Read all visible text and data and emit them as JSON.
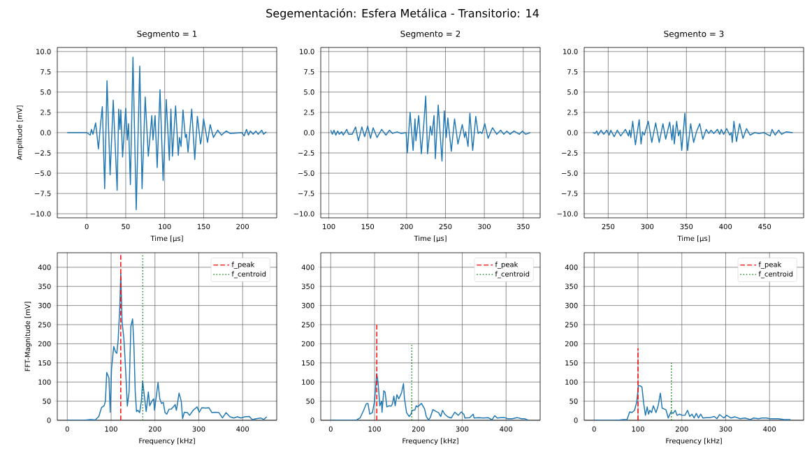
{
  "chart_data": [
    {
      "type": "line",
      "title": "Segmento = 1",
      "xlabel": "Time [µs]",
      "ylabel": "Amplitude [mV]",
      "annotations": [
        "Segementación: Esfera Metálica - Transitorio: 14"
      ],
      "xlim": [
        -37.8,
        243.8
      ],
      "xticks": [
        0,
        50,
        100,
        150,
        200
      ],
      "ylim": [
        -10.5,
        10.5
      ],
      "yticks": [
        {
          "value": -10,
          "label": "−10.0"
        },
        {
          "value": -7.5,
          "label": "−7.5"
        },
        {
          "value": -5,
          "label": "−5.0"
        },
        {
          "value": -2.5,
          "label": "−2.5"
        },
        {
          "value": 0,
          "label": "0.0"
        },
        {
          "value": 2.5,
          "label": "2.5"
        },
        {
          "value": 5,
          "label": "5.0"
        },
        {
          "value": 7.5,
          "label": "7.5"
        },
        {
          "value": 10,
          "label": "10.0"
        }
      ],
      "grid": true,
      "series": [
        {
          "color": "#1f77b4",
          "x": [
            -25,
            0,
            4.5,
            6,
            8,
            11.4,
            15,
            17.7,
            20,
            23,
            26,
            30,
            34,
            39,
            41,
            42.5,
            43.7,
            46,
            50,
            52,
            53.6,
            56,
            59.3,
            63.5,
            68,
            71,
            75,
            79,
            83.5,
            85,
            87.7,
            90.4,
            94,
            98,
            102,
            106,
            108,
            110,
            114,
            117.5,
            119,
            121,
            123.5,
            126.6,
            128,
            130,
            134.7,
            138.6,
            142,
            146,
            147,
            150,
            155,
            158.4,
            162.6,
            168,
            173,
            179,
            184,
            199,
            202,
            205,
            207.5,
            210,
            213.5,
            217,
            220,
            224.6,
            227,
            230.5
          ],
          "values": [
            0,
            0,
            -0.3,
            0.4,
            -0.2,
            1.2,
            -2.0,
            1.1,
            3.2,
            -6.9,
            6.4,
            -5.2,
            4.0,
            -7.1,
            2.9,
            0.4,
            2.8,
            -3.0,
            3.0,
            -0.9,
            1.1,
            -6.4,
            9.3,
            -9.5,
            8.2,
            -6.9,
            4.4,
            -2.9,
            2.1,
            -0.9,
            2.1,
            -4.3,
            5.3,
            -5.9,
            4.1,
            -3.4,
            2.9,
            -2.9,
            3.3,
            -2.8,
            -0.6,
            -1.7,
            2.8,
            -0.6,
            -0.2,
            -2.4,
            2.9,
            -3.3,
            2.0,
            -1.4,
            -0.9,
            1.7,
            -1.2,
            1.0,
            -0.6,
            0.3,
            -0.3,
            0.2,
            -0.1,
            0,
            -0.4,
            0.4,
            -0.3,
            0.2,
            -0.2,
            0.2,
            -0.2,
            0.3,
            -0.2,
            0.1
          ]
        }
      ]
    },
    {
      "type": "line",
      "title": "Segmento = 2",
      "xlabel": "Time [µs]",
      "xlim": [
        89.6,
        371.8
      ],
      "xticks": [
        100,
        150,
        200,
        250,
        300,
        350
      ],
      "ylim": [
        -10.5,
        10.5
      ],
      "yticks": [
        {
          "value": -10,
          "label": "−10.0"
        },
        {
          "value": -7.5,
          "label": "−7.5"
        },
        {
          "value": -5,
          "label": "−5.0"
        },
        {
          "value": -2.5,
          "label": "−2.5"
        },
        {
          "value": 0,
          "label": "0.0"
        },
        {
          "value": 2.5,
          "label": "2.5"
        },
        {
          "value": 5,
          "label": "5.0"
        },
        {
          "value": 7.5,
          "label": "7.5"
        },
        {
          "value": 10,
          "label": "10.0"
        }
      ],
      "grid": true,
      "series": [
        {
          "color": "#1f77b4",
          "x": [
            102.4,
            104.5,
            106.6,
            109,
            111.4,
            113.5,
            116.5,
            118.6,
            123,
            125.4,
            130,
            134.4,
            138,
            142.5,
            146,
            150,
            153.6,
            157,
            162,
            168,
            173.4,
            178,
            182,
            187.7,
            192.8,
            199.4,
            201,
            204.5,
            208.4,
            210.8,
            212,
            215.6,
            219,
            222,
            224.6,
            227,
            230.5,
            232.6,
            235.3,
            237,
            240.7,
            245.5,
            248.5,
            251,
            253,
            257.5,
            261.7,
            266,
            271.6,
            274.6,
            276,
            279,
            281.4,
            285,
            289,
            292,
            294.6,
            297,
            300.6,
            304.8,
            310.5,
            316,
            321,
            325,
            329,
            333,
            338,
            345,
            349,
            353,
            359
          ],
          "values": [
            0.3,
            -0.2,
            0.3,
            -0.3,
            0.2,
            -0.2,
            0.1,
            -0.3,
            0.4,
            -0.2,
            -0.2,
            0.7,
            -1.0,
            0.7,
            -0.5,
            0.8,
            -0.7,
            0.6,
            -0.6,
            0.4,
            -0.3,
            0.3,
            -0.1,
            0.1,
            -0.1,
            0,
            -2.5,
            2.5,
            -2.2,
            1.7,
            -1.0,
            2.1,
            -2.6,
            0.9,
            4.5,
            -2.6,
            0.8,
            -0.3,
            2.1,
            -3.2,
            3.4,
            -3.5,
            2.7,
            -0.6,
            1.8,
            -2.3,
            1.7,
            -1.4,
            1.0,
            -0.6,
            0.1,
            -1.7,
            2.4,
            -2.2,
            2.0,
            -0.1,
            0.1,
            -0.1,
            1.1,
            -0.7,
            0.6,
            -0.2,
            0.3,
            -0.2,
            0.2,
            -0.2,
            0.2,
            -0.2,
            0.2,
            -0.2,
            0
          ]
        }
      ]
    },
    {
      "type": "line",
      "title": "Segmento = 3",
      "xlabel": "Time [µs]",
      "xlim": [
        219.3,
        499.8
      ],
      "xticks": [
        250,
        300,
        350,
        400,
        450
      ],
      "ylim": [
        -10.5,
        10.5
      ],
      "yticks": [
        {
          "value": -10,
          "label": "−10.0"
        },
        {
          "value": -7.5,
          "label": "−7.5"
        },
        {
          "value": -5,
          "label": "−5.0"
        },
        {
          "value": -2.5,
          "label": "−2.5"
        },
        {
          "value": 0,
          "label": "0.0"
        },
        {
          "value": 2.5,
          "label": "2.5"
        },
        {
          "value": 5,
          "label": "5.0"
        },
        {
          "value": 7.5,
          "label": "7.5"
        },
        {
          "value": 10,
          "label": "10.0"
        }
      ],
      "grid": true,
      "series": [
        {
          "color": "#1f77b4",
          "x": [
            230.4,
            233.3,
            235.4,
            237.2,
            240.8,
            244.3,
            248.2,
            251.2,
            253.3,
            257.7,
            261.6,
            266,
            272,
            275.9,
            277.4,
            278.9,
            281.3,
            284.8,
            289.6,
            292,
            293.8,
            296.1,
            301.2,
            305.7,
            310.7,
            315.2,
            320,
            323.5,
            328.6,
            331.5,
            333,
            334.5,
            337.5,
            339.9,
            342,
            344,
            348,
            351.5,
            355.4,
            359.2,
            362.8,
            367,
            371,
            375.3,
            378.6,
            381.5,
            385,
            389.6,
            392.6,
            394.6,
            397.6,
            401.5,
            405.4,
            407.4,
            408.6,
            410.7,
            414,
            418,
            422.3,
            426.8,
            431.3,
            437.2,
            442.6,
            449,
            457,
            459.5,
            463.4,
            467.9,
            471.7,
            477.4,
            485.8
          ],
          "values": [
            0,
            -0.1,
            0.2,
            -0.3,
            0.3,
            -0.2,
            0.3,
            -0.3,
            0.3,
            -0.5,
            0.3,
            -0.4,
            0.4,
            -0.4,
            0.3,
            -0.6,
            1.4,
            -1.5,
            1.6,
            -1.4,
            0.1,
            -0.3,
            1.4,
            -1.2,
            1.2,
            -1.2,
            1.1,
            -0.8,
            1.3,
            -0.9,
            0.9,
            -1.4,
            1.4,
            -0.4,
            0.3,
            -2.2,
            2.4,
            -2.2,
            1.1,
            -1.2,
            0.1,
            1.1,
            -0.8,
            0.4,
            -0.1,
            0.3,
            -0.1,
            0.4,
            -0.2,
            0.4,
            -0.2,
            0.5,
            -0.3,
            0,
            -1.2,
            1.4,
            -1.1,
            1.1,
            -0.7,
            0.5,
            -0.3,
            0,
            -0.1,
            0,
            -0.4,
            0.4,
            -0.3,
            0.3,
            -0.2,
            0.1,
            0
          ]
        }
      ]
    },
    {
      "type": "line",
      "xlabel": "Frequency [kHz]",
      "ylabel": "FFT-Magnitude [mV]",
      "xlim": [
        -22.75,
        477.75
      ],
      "xticks": [
        0,
        100,
        200,
        300,
        400
      ],
      "ylim": [
        0,
        438
      ],
      "yticks": [
        0,
        50,
        100,
        150,
        200,
        250,
        300,
        350,
        400
      ],
      "grid": true,
      "legend": "top right",
      "series": [
        {
          "color": "#1f77b4",
          "x": [
            0,
            37,
            53,
            64,
            72,
            78,
            84,
            87,
            90,
            95,
            98,
            101,
            106,
            110,
            113,
            116,
            120,
            122,
            125,
            129,
            133,
            137,
            141,
            145,
            149,
            152,
            155,
            158,
            161,
            165,
            169,
            172,
            176,
            180,
            185,
            188,
            193,
            197,
            199,
            203,
            207,
            211,
            215,
            219,
            223,
            227,
            232,
            237,
            242,
            246,
            249,
            255,
            260,
            263,
            267,
            274,
            279,
            287,
            296,
            301,
            307,
            316,
            323,
            330,
            338,
            346,
            354,
            362,
            371,
            380,
            388,
            396,
            405,
            415,
            422,
            431,
            441,
            448,
            455
          ],
          "values": [
            0,
            0,
            2,
            1,
            10,
            33,
            38,
            50,
            125,
            111,
            21,
            135,
            193,
            179,
            175,
            209,
            300,
            385,
            257,
            215,
            135,
            37,
            74,
            245,
            265,
            196,
            74,
            23,
            26,
            20,
            50,
            102,
            62,
            23,
            74,
            38,
            50,
            56,
            26,
            62,
            99,
            56,
            44,
            47,
            20,
            16,
            29,
            29,
            35,
            41,
            26,
            71,
            50,
            4,
            21,
            20,
            13,
            26,
            35,
            21,
            33,
            32,
            33,
            20,
            21,
            20,
            6,
            20,
            9,
            6,
            9,
            6,
            9,
            10,
            2,
            4,
            6,
            2,
            9
          ]
        },
        {
          "name": "f_peak",
          "color": "#ff0000",
          "line_style": "dashed",
          "x": [
            122,
            122
          ],
          "values": [
            0,
            436
          ]
        },
        {
          "name": "f_centroid",
          "color": "#008000",
          "line_style": "dotted",
          "x": [
            172,
            172
          ],
          "values": [
            0,
            436
          ]
        }
      ]
    },
    {
      "type": "line",
      "xlabel": "Frequency [kHz]",
      "xlim": [
        -22.75,
        477.75
      ],
      "xticks": [
        0,
        100,
        200,
        300,
        400
      ],
      "ylim": [
        0,
        438
      ],
      "yticks": [
        0,
        50,
        100,
        150,
        200,
        250,
        300,
        350,
        400
      ],
      "grid": true,
      "legend": "top right",
      "series": [
        {
          "color": "#1f77b4",
          "x": [
            0,
            48,
            59,
            67,
            75,
            81,
            85,
            89,
            95,
            100,
            105,
            108,
            112,
            116,
            117,
            121,
            124,
            128,
            133,
            138,
            141,
            144,
            147,
            151,
            155,
            159,
            162,
            166,
            168,
            173,
            179,
            183,
            186,
            192,
            195,
            198,
            207,
            214,
            218,
            223,
            227,
            233,
            239,
            246,
            251,
            255,
            260,
            267,
            275,
            283,
            291,
            298,
            304,
            306,
            317,
            325,
            327,
            338,
            348,
            359,
            368,
            374,
            380,
            388,
            396,
            404,
            414,
            425,
            435,
            443,
            451
          ],
          "values": [
            0,
            0,
            1,
            6,
            26,
            43,
            44,
            16,
            20,
            50,
            122,
            99,
            38,
            50,
            21,
            77,
            74,
            35,
            38,
            37,
            44,
            63,
            38,
            67,
            56,
            65,
            74,
            96,
            59,
            20,
            10,
            16,
            26,
            27,
            38,
            35,
            44,
            30,
            10,
            1,
            7,
            28,
            24,
            20,
            10,
            26,
            16,
            9,
            6,
            21,
            13,
            22,
            15,
            6,
            7,
            16,
            6,
            7,
            6,
            7,
            1,
            12,
            6,
            7,
            7,
            4,
            4,
            7,
            4,
            4,
            0
          ]
        },
        {
          "name": "f_peak",
          "color": "#ff0000",
          "line_style": "dashed",
          "x": [
            105,
            105
          ],
          "values": [
            0,
            250
          ]
        },
        {
          "name": "f_centroid",
          "color": "#008000",
          "line_style": "dotted",
          "x": [
            185,
            185
          ],
          "values": [
            0,
            197
          ]
        }
      ]
    },
    {
      "type": "line",
      "xlabel": "Frequency [kHz]",
      "xlim": [
        -22.75,
        477.75
      ],
      "xticks": [
        0,
        100,
        200,
        300,
        400
      ],
      "ylim": [
        0,
        438
      ],
      "yticks": [
        0,
        50,
        100,
        150,
        200,
        250,
        300,
        350,
        400
      ],
      "grid": true,
      "legend": "top right",
      "series": [
        {
          "color": "#1f77b4",
          "x": [
            0,
            48,
            59,
            67,
            75,
            81,
            86,
            92,
            97,
            101,
            105,
            109,
            113,
            117,
            121,
            124,
            127,
            131,
            135,
            141,
            146,
            151,
            155,
            159,
            164,
            169,
            175,
            180,
            185,
            189,
            195,
            201,
            207,
            213,
            218,
            223,
            228,
            233,
            238,
            243,
            248,
            256,
            265,
            274,
            280,
            286,
            296,
            302,
            312,
            321,
            333,
            344,
            356,
            364,
            375,
            383,
            393,
            401,
            412,
            420,
            433,
            448
          ],
          "values": [
            0,
            0,
            1,
            2,
            2,
            22,
            20,
            26,
            47,
            91,
            90,
            87,
            44,
            13,
            35,
            16,
            26,
            20,
            38,
            20,
            38,
            71,
            32,
            30,
            27,
            6,
            22,
            18,
            26,
            13,
            16,
            13,
            13,
            26,
            10,
            16,
            6,
            18,
            6,
            16,
            6,
            7,
            7,
            10,
            4,
            15,
            6,
            13,
            6,
            9,
            4,
            6,
            2,
            6,
            4,
            6,
            6,
            4,
            4,
            4,
            2,
            2
          ]
        },
        {
          "name": "f_peak",
          "color": "#ff0000",
          "line_style": "dashed",
          "x": [
            100,
            100
          ],
          "values": [
            0,
            188
          ]
        },
        {
          "name": "f_centroid",
          "color": "#008000",
          "line_style": "dotted",
          "x": [
            176,
            176
          ],
          "values": [
            0,
            150
          ]
        }
      ]
    }
  ]
}
